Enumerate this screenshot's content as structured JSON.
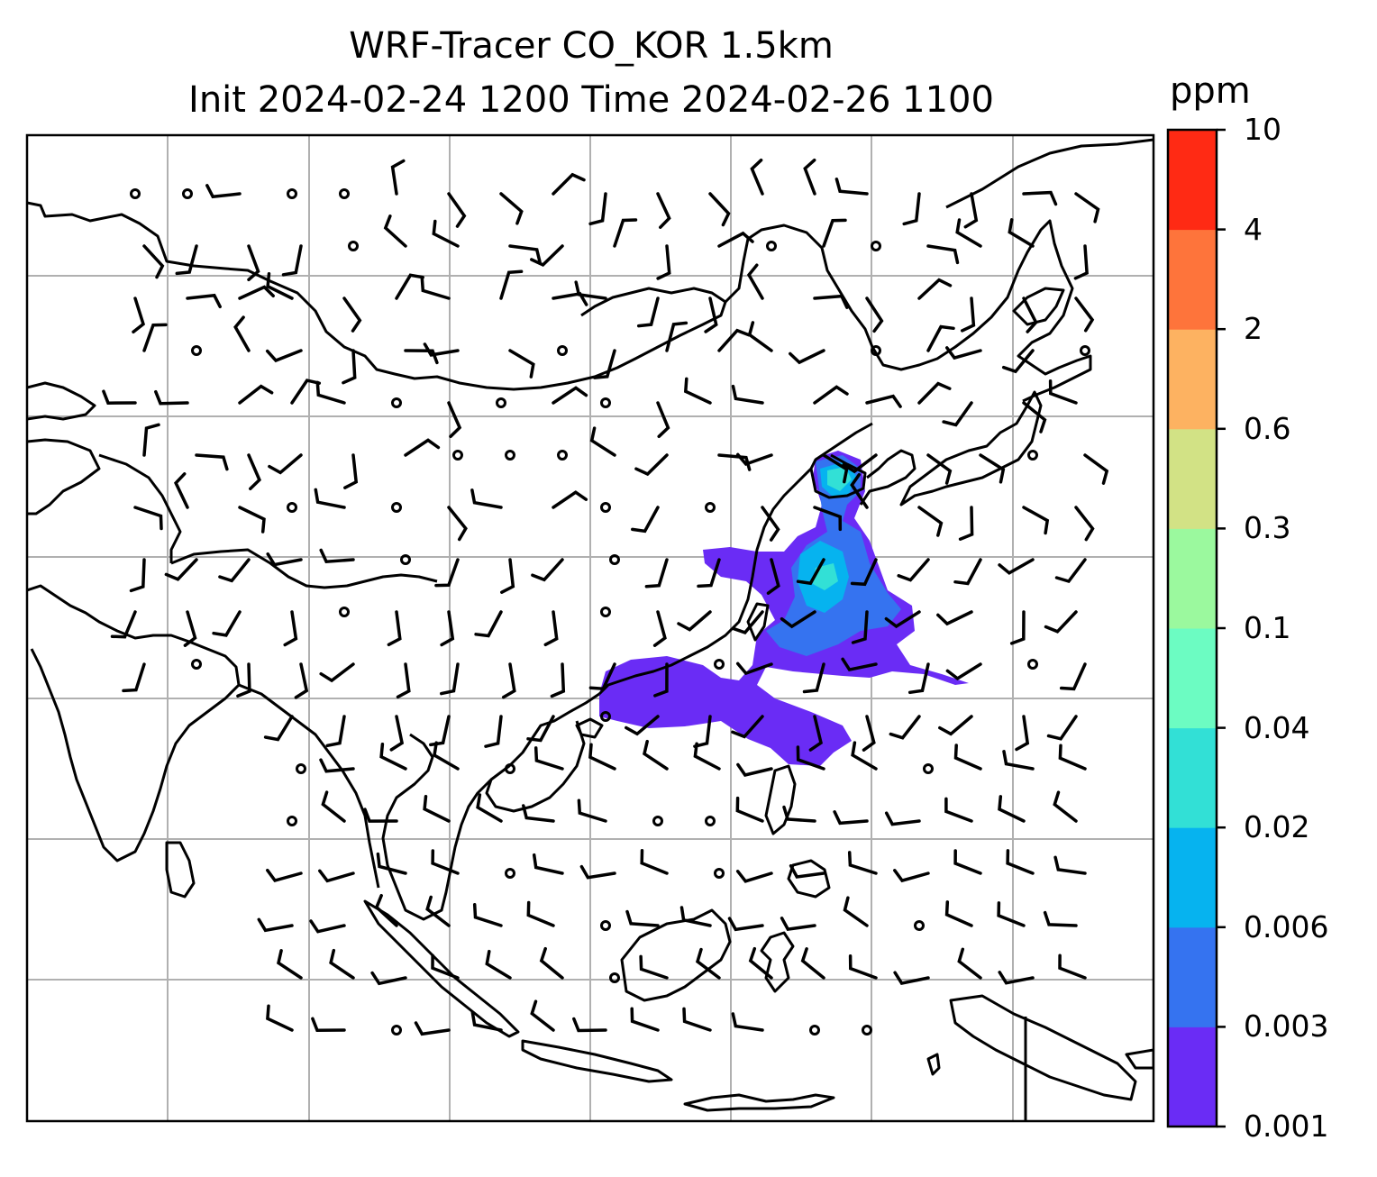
{
  "map": {
    "title_line1": "WRF-Tracer CO_KOR 1.5km",
    "title_line2": "Init 2024-02-24 1200 Time 2024-02-26 1100",
    "gridlines": true
  },
  "colorbar": {
    "unit": "ppm",
    "tick_labels": [
      "0.001",
      "0.003",
      "0.006",
      "0.02",
      "0.04",
      "0.1",
      "0.3",
      "0.6",
      "2",
      "4",
      "10"
    ],
    "colors": [
      "#6a2cf5",
      "#3573f0",
      "#06b3ef",
      "#32e0d6",
      "#6cfcc2",
      "#9bf99e",
      "#d2e285",
      "#fdb261",
      "#fe743b",
      "#ff2a14"
    ]
  },
  "colors": {
    "coastline": "#000000",
    "grid": "#b0b0b0",
    "wind_barb": "#000000"
  }
}
